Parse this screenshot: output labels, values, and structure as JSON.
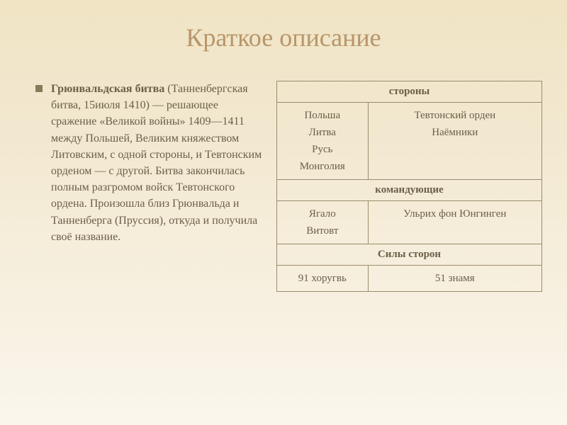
{
  "title": "Краткое описание",
  "description": {
    "bold_part": "Грюнвальдская битва",
    "rest": " (Танненбергская битва, 15июля 1410) — решающее сражение «Великой войны» 1409—1411 между Польшей, Великим княжеством Литовским, с одной стороны, и Тевтонским орденом — с другой. Битва закончилась полным разгромом войск Тевтонского ордена. Произошла близ Грюнвальда и Танненберга (Пруссия), откуда и получила своё название."
  },
  "table": {
    "sections": {
      "sides": {
        "header": "стороны",
        "left": [
          "Польша",
          "Литва",
          "Русь",
          "Монголия"
        ],
        "right": [
          "Тевтонский орден",
          "Наёмники"
        ]
      },
      "commanders": {
        "header": "командующие",
        "left": [
          "Ягало",
          "Витовт"
        ],
        "right": [
          "Ульрих фон Юнгинген"
        ]
      },
      "forces": {
        "header": "Силы сторон",
        "left": "91 хоругвь",
        "right": "51 знамя"
      }
    }
  },
  "styling": {
    "title_color": "#b8956a",
    "text_color": "#6a5f48",
    "border_color": "#9a8c6c",
    "bullet_color": "#8a7a5a",
    "bg_gradient_top": "#f0e4c4",
    "bg_gradient_bottom": "#faf6ec",
    "title_fontsize": 36,
    "body_fontsize": 16,
    "table_fontsize": 15
  }
}
